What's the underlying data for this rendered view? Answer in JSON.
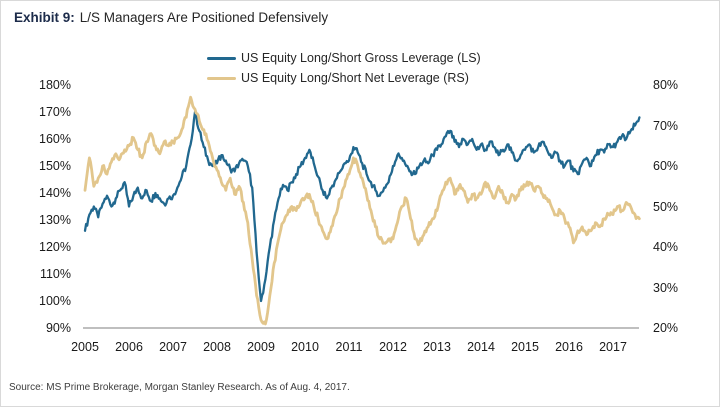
{
  "header": {
    "exhibit_label": "Exhibit 9:",
    "title": "L/S Managers Are Positioned Defensively"
  },
  "footer": {
    "source": "Source: MS Prime Brokerage, Morgan Stanley Research. As of Aug. 4, 2017."
  },
  "colors": {
    "gross_line": "#21688f",
    "net_line": "#e2c68c",
    "axis_line": "#7f7f7f",
    "exhibit_label": "#1c2b4a"
  },
  "chart_data": {
    "type": "line",
    "title": "Exhibit 9: L/S Managers Are Positioned Defensively",
    "grid": false,
    "legend_position": "top-center",
    "x_start": 2005.0,
    "x_step": 0.1,
    "x_end": 2017.6,
    "x_tick_labels": [
      "2005",
      "2006",
      "2007",
      "2008",
      "2009",
      "2010",
      "2011",
      "2012",
      "2013",
      "2014",
      "2015",
      "2016",
      "2017"
    ],
    "left_axis": {
      "min": 90,
      "max": 180,
      "ticks": [
        "180%",
        "170%",
        "160%",
        "150%",
        "140%",
        "130%",
        "120%",
        "110%",
        "100%",
        "90%"
      ]
    },
    "right_axis": {
      "min": 20,
      "max": 80,
      "ticks": [
        "80%",
        "70%",
        "60%",
        "50%",
        "40%",
        "30%",
        "20%"
      ]
    },
    "series": [
      {
        "name": "US Equity Long/Short Gross Leverage (LS)",
        "axis": "left",
        "color": "#21688f",
        "values": [
          126,
          132,
          135,
          131,
          136,
          139,
          135,
          138,
          141,
          144,
          135,
          139,
          142,
          138,
          141,
          137,
          140,
          138,
          136,
          138,
          139,
          142,
          146,
          150,
          158,
          170,
          163,
          157,
          152,
          150,
          151,
          154,
          152,
          149,
          148,
          151,
          152,
          150,
          142,
          118,
          100,
          108,
          120,
          130,
          138,
          143,
          141,
          144,
          147,
          150,
          153,
          156,
          151,
          146,
          141,
          138,
          142,
          145,
          148,
          151,
          152,
          157,
          155,
          151,
          147,
          144,
          141,
          139,
          142,
          144,
          150,
          154,
          153,
          150,
          148,
          147,
          150,
          152,
          151,
          154,
          156,
          158,
          161,
          163,
          159,
          157,
          160,
          158,
          160,
          156,
          158,
          156,
          159,
          157,
          154,
          156,
          158,
          155,
          152,
          154,
          156,
          158,
          155,
          157,
          159,
          156,
          153,
          155,
          152,
          150,
          152,
          148,
          147,
          151,
          153,
          150,
          154,
          156,
          155,
          158,
          157,
          159,
          161,
          160,
          163,
          165,
          168
        ]
      },
      {
        "name": "US Equity Long/Short Net Leverage (RS)",
        "axis": "right",
        "color": "#e2c68c",
        "values": [
          54,
          62,
          55,
          57,
          60,
          58,
          61,
          63,
          62,
          64,
          65,
          67,
          64,
          62,
          66,
          68,
          65,
          63,
          66,
          65,
          66,
          67,
          69,
          72,
          77,
          74,
          71,
          69,
          66,
          62,
          59,
          56,
          54,
          57,
          53,
          55,
          51,
          46,
          37,
          28,
          22,
          21,
          28,
          36,
          42,
          46,
          48,
          50,
          49,
          51,
          52,
          53,
          50,
          47,
          44,
          42,
          45,
          48,
          52,
          55,
          58,
          62,
          60,
          57,
          53,
          49,
          45,
          42,
          41,
          42,
          42,
          46,
          50,
          52,
          47,
          42,
          41,
          43,
          45,
          47,
          49,
          53,
          56,
          57,
          53,
          55,
          54,
          51,
          53,
          52,
          53,
          56,
          54,
          52,
          55,
          53,
          51,
          53,
          52,
          54,
          55,
          56,
          54,
          55,
          53,
          52,
          50,
          48,
          49,
          47,
          45,
          41,
          44,
          45,
          43,
          44,
          46,
          45,
          47,
          48,
          48,
          50,
          49,
          51,
          50,
          48,
          47
        ]
      }
    ]
  }
}
